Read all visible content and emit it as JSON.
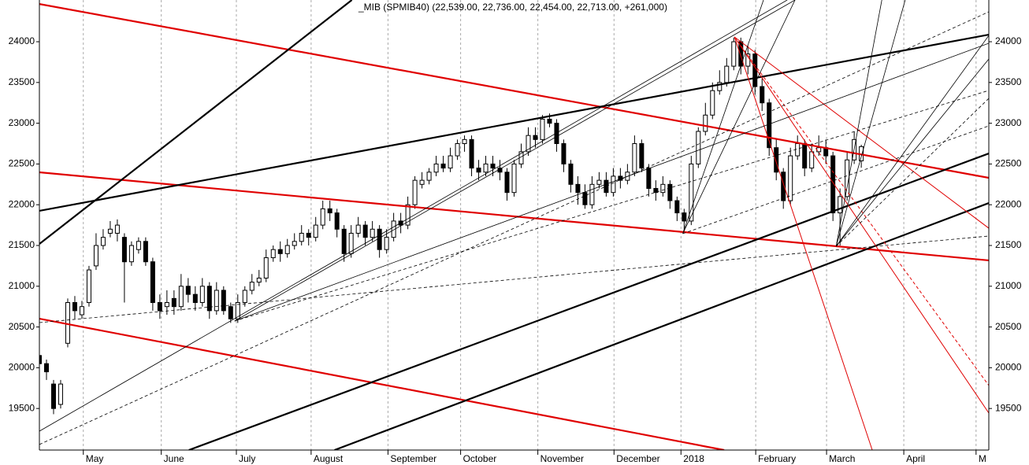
{
  "chart_data": {
    "type": "candlestick",
    "title": "_MIB (SPMIB40) (22,539.00, 22,736.00, 22,454.00, 22,713.00, +261,000)",
    "xlim": [
      0,
      268
    ],
    "xticks": [
      {
        "value": 12.4,
        "label": "May"
      },
      {
        "value": 34.4,
        "label": "June"
      },
      {
        "value": 55.6,
        "label": "July"
      },
      {
        "value": 76.7,
        "label": "August"
      },
      {
        "value": 98.4,
        "label": "September"
      },
      {
        "value": 118.9,
        "label": "October"
      },
      {
        "value": 140.7,
        "label": "November"
      },
      {
        "value": 162.2,
        "label": "December"
      },
      {
        "value": 181.1,
        "label": "2018"
      },
      {
        "value": 202.2,
        "label": "February"
      },
      {
        "value": 222.2,
        "label": "March"
      },
      {
        "value": 244,
        "label": "April"
      },
      {
        "value": 264.4,
        "label": "M"
      }
    ],
    "ylim": [
      18990,
      24512
    ],
    "yticks": [
      19500,
      20000,
      20500,
      21000,
      21500,
      22000,
      22500,
      23000,
      23500,
      24000
    ],
    "grid": true,
    "x": [
      0,
      2,
      4,
      6,
      8,
      10,
      12,
      14,
      16,
      18,
      20,
      22,
      24,
      26,
      28,
      30,
      32,
      34,
      36,
      38,
      40,
      42,
      44,
      46,
      48,
      50,
      52,
      54,
      56,
      58,
      60,
      62,
      64,
      66,
      68,
      70,
      72,
      74,
      76,
      78,
      80,
      82,
      84,
      86,
      88,
      90,
      92,
      94,
      96,
      98,
      100,
      102,
      104,
      106,
      108,
      110,
      112,
      114,
      116,
      118,
      120,
      122,
      124,
      126,
      128,
      130,
      132,
      134,
      136,
      138,
      140,
      142,
      144,
      146,
      148,
      150,
      152,
      154,
      156,
      158,
      160,
      162,
      164,
      166,
      168,
      170,
      172,
      174,
      176,
      178,
      180,
      182,
      184,
      186,
      188,
      190,
      192,
      194,
      196,
      198,
      200,
      202,
      204,
      206,
      208,
      210,
      212,
      214,
      216,
      218,
      220,
      222,
      224,
      226,
      228,
      230,
      232
    ],
    "open": [
      20150,
      20050,
      19800,
      19550,
      20300,
      20800,
      20650,
      20800,
      21250,
      21500,
      21650,
      21650,
      21600,
      21300,
      21450,
      21550,
      21300,
      20800,
      20750,
      20850,
      20750,
      21000,
      20900,
      20800,
      21000,
      20700,
      20950,
      20750,
      20600,
      20800,
      20950,
      21050,
      21100,
      21350,
      21450,
      21400,
      21500,
      21550,
      21650,
      21600,
      21750,
      21950,
      21900,
      21700,
      21400,
      21650,
      21750,
      21600,
      21700,
      21450,
      21600,
      21800,
      21750,
      22000,
      22250,
      22300,
      22400,
      22500,
      22450,
      22600,
      22750,
      22800,
      22450,
      22400,
      22500,
      22450,
      22400,
      22150,
      22500,
      22650,
      22850,
      22800,
      23050,
      23000,
      22750,
      22500,
      22250,
      22150,
      22000,
      22250,
      22300,
      22150,
      22350,
      22300,
      22400,
      22750,
      22450,
      22200,
      22150,
      22250,
      22050,
      21900,
      21800,
      22500,
      22900,
      23100,
      23400,
      23500,
      23700,
      24000,
      23700,
      23850,
      23450,
      23250,
      22700,
      22400,
      22050,
      22600,
      22750,
      22450,
      22650,
      22700,
      22600,
      21900,
      22100,
      22550,
      22539
    ],
    "high": [
      20280,
      20100,
      19850,
      19850,
      20850,
      20880,
      20820,
      21250,
      21650,
      21700,
      21800,
      21820,
      21650,
      21550,
      21600,
      21600,
      21350,
      20900,
      20950,
      20950,
      21150,
      21100,
      21000,
      21100,
      21050,
      21050,
      21000,
      20800,
      20900,
      21000,
      21150,
      21200,
      21450,
      21500,
      21550,
      21580,
      21650,
      21750,
      21700,
      21850,
      22050,
      22050,
      21950,
      21750,
      21750,
      21850,
      21800,
      21800,
      21750,
      21700,
      21900,
      21900,
      22100,
      22350,
      22400,
      22450,
      22600,
      22600,
      22700,
      22800,
      22850,
      22850,
      22550,
      22600,
      22600,
      22550,
      22450,
      22550,
      22750,
      22950,
      22950,
      23100,
      23120,
      23050,
      22800,
      22550,
      22350,
      22250,
      22350,
      22400,
      22400,
      22450,
      22450,
      22500,
      22850,
      22800,
      22500,
      22300,
      22350,
      22300,
      22100,
      21950,
      22600,
      22950,
      23250,
      23500,
      23650,
      23800,
      24050,
      24050,
      23950,
      23900,
      23550,
      23300,
      22800,
      22450,
      22700,
      22850,
      22800,
      22750,
      22850,
      22800,
      22650,
      22200,
      22650,
      22900,
      22736
    ],
    "low": [
      19950,
      19850,
      19430,
      19500,
      20250,
      20600,
      20600,
      20750,
      21200,
      21450,
      21600,
      21550,
      20800,
      21250,
      21400,
      21250,
      20700,
      20600,
      20650,
      20650,
      20700,
      20800,
      20700,
      20750,
      20600,
      20650,
      20650,
      20550,
      20550,
      20750,
      20900,
      21000,
      21050,
      21300,
      21300,
      21350,
      21450,
      21500,
      21500,
      21550,
      21700,
      21800,
      21600,
      21300,
      21350,
      21600,
      21500,
      21550,
      21350,
      21400,
      21550,
      21650,
      21700,
      21950,
      22200,
      22250,
      22350,
      22400,
      22400,
      22550,
      22650,
      22350,
      22300,
      22350,
      22350,
      22300,
      22050,
      22100,
      22450,
      22600,
      22700,
      22750,
      22950,
      22650,
      22400,
      22150,
      22000,
      21950,
      21950,
      22200,
      22100,
      22100,
      22200,
      22250,
      22350,
      22400,
      22100,
      22050,
      22100,
      21950,
      21800,
      21650,
      21750,
      22450,
      22850,
      23050,
      23350,
      23450,
      23650,
      23600,
      23600,
      23350,
      23150,
      22600,
      22300,
      21950,
      22000,
      22550,
      22350,
      22400,
      22600,
      22500,
      21800,
      21500,
      22050,
      22500,
      22454
    ],
    "close": [
      20050,
      19950,
      19500,
      19800,
      20800,
      20700,
      20750,
      21200,
      21500,
      21600,
      21700,
      21750,
      21300,
      21500,
      21550,
      21300,
      20800,
      20700,
      20800,
      20750,
      21000,
      20900,
      20800,
      21000,
      20700,
      20950,
      20700,
      20600,
      20800,
      20950,
      21050,
      21100,
      21350,
      21450,
      21400,
      21500,
      21550,
      21650,
      21600,
      21750,
      21950,
      21900,
      21700,
      21400,
      21650,
      21750,
      21600,
      21700,
      21450,
      21600,
      21800,
      21750,
      22000,
      22300,
      22300,
      22400,
      22500,
      22450,
      22600,
      22750,
      22800,
      22450,
      22400,
      22500,
      22450,
      22400,
      22150,
      22500,
      22650,
      22850,
      22800,
      23050,
      23000,
      22750,
      22500,
      22250,
      22150,
      22000,
      22250,
      22300,
      22150,
      22350,
      22300,
      22400,
      22750,
      22450,
      22200,
      22150,
      22250,
      22050,
      21900,
      21800,
      22500,
      22900,
      23100,
      23400,
      23500,
      23700,
      24000,
      23700,
      23850,
      23450,
      23250,
      22700,
      22400,
      22050,
      22600,
      22750,
      22450,
      22650,
      22700,
      22600,
      21900,
      22100,
      22550,
      22800,
      22713
    ],
    "lines": [
      {
        "color": "#e00000",
        "width": 2.2,
        "dash": false,
        "x": [
          0,
          268
        ],
        "y": [
          24463,
          22330
        ]
      },
      {
        "color": "#e00000",
        "width": 2.2,
        "dash": false,
        "x": [
          0,
          268
        ],
        "y": [
          22398,
          21317
        ]
      },
      {
        "color": "#e00000",
        "width": 2.2,
        "dash": false,
        "x": [
          0,
          193.3
        ],
        "y": [
          20602,
          18990
        ]
      },
      {
        "color": "#000000",
        "width": 2.2,
        "dash": false,
        "x": [
          0,
          88.2
        ],
        "y": [
          21519,
          24512
        ]
      },
      {
        "color": "#000000",
        "width": 2.2,
        "dash": false,
        "x": [
          0,
          268
        ],
        "y": [
          21925,
          24087
        ]
      },
      {
        "color": "#000000",
        "width": 2.2,
        "dash": false,
        "x": [
          42.2,
          268
        ],
        "y": [
          18990,
          22629
        ]
      },
      {
        "color": "#000000",
        "width": 2.2,
        "dash": false,
        "x": [
          83.3,
          268
        ],
        "y": [
          18990,
          22021
        ]
      },
      {
        "color": "#e00000",
        "width": 1,
        "dash": false,
        "x": [
          196.2,
          235.1
        ],
        "y": [
          24058,
          18990
        ]
      },
      {
        "color": "#e00000",
        "width": 1,
        "dash": false,
        "x": [
          196.2,
          268
        ],
        "y": [
          24058,
          19444
        ]
      },
      {
        "color": "#e00000",
        "width": 1,
        "dash": true,
        "x": [
          196.2,
          268
        ],
        "y": [
          24058,
          19782
        ]
      },
      {
        "color": "#e00000",
        "width": 1,
        "dash": false,
        "x": [
          196.2,
          268
        ],
        "y": [
          24058,
          21712
        ]
      },
      {
        "color": "#000000",
        "width": 0.8,
        "dash": false,
        "x": [
          55.1,
          213.3
        ],
        "y": [
          20573,
          24512
        ]
      },
      {
        "color": "#000000",
        "width": 0.8,
        "dash": false,
        "x": [
          0,
          211.1
        ],
        "y": [
          19222,
          24512
        ]
      },
      {
        "color": "#000000",
        "width": 0.8,
        "dash": false,
        "x": [
          55.1,
          268
        ],
        "y": [
          20573,
          23981
        ]
      },
      {
        "color": "#000000",
        "width": 0.8,
        "dash": false,
        "x": [
          181.6,
          204.4
        ],
        "y": [
          21645,
          24512
        ]
      },
      {
        "color": "#000000",
        "width": 0.8,
        "dash": false,
        "x": [
          181.6,
          213.3
        ],
        "y": [
          21645,
          24512
        ]
      },
      {
        "color": "#000000",
        "width": 0.8,
        "dash": false,
        "x": [
          224.9,
          268
        ],
        "y": [
          21490,
          24077
        ]
      },
      {
        "color": "#000000",
        "width": 0.8,
        "dash": false,
        "x": [
          224.9,
          268
        ],
        "y": [
          21490,
          23788
        ]
      },
      {
        "color": "#000000",
        "width": 0.8,
        "dash": false,
        "x": [
          224.9,
          244.4
        ],
        "y": [
          21490,
          24512
        ]
      },
      {
        "color": "#000000",
        "width": 0.8,
        "dash": false,
        "x": [
          224.9,
          237.8
        ],
        "y": [
          21490,
          24512
        ]
      },
      {
        "color": "#000000",
        "width": 0.8,
        "dash": true,
        "x": [
          0,
          268
        ],
        "y": [
          19058,
          24367
        ]
      },
      {
        "color": "#000000",
        "width": 0.8,
        "dash": true,
        "x": [
          0,
          268
        ],
        "y": [
          20554,
          21616
        ]
      },
      {
        "color": "#000000",
        "width": 0.8,
        "dash": true,
        "x": [
          55.1,
          268
        ],
        "y": [
          20573,
          23402
        ]
      },
      {
        "color": "#000000",
        "width": 0.8,
        "dash": true,
        "x": [
          181.6,
          268
        ],
        "y": [
          21645,
          22967
        ]
      },
      {
        "color": "#000000",
        "width": 0.8,
        "dash": true,
        "x": [
          224.9,
          268
        ],
        "y": [
          21490,
          23305
        ]
      }
    ]
  }
}
